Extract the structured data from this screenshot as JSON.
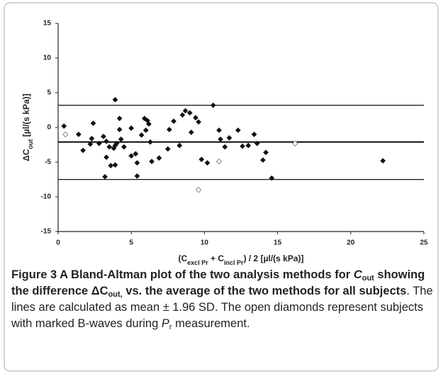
{
  "chart_data": {
    "type": "scatter",
    "y_label": [
      {
        "text": "ΔC"
      },
      {
        "text": "out",
        "sub": true
      },
      {
        "text": " [µl/(s kPa)]"
      }
    ],
    "x_label": [
      {
        "text": "(C"
      },
      {
        "text": "excl Pr",
        "sub": true
      },
      {
        "text": " + C"
      },
      {
        "text": "incl Pr",
        "sub": true
      },
      {
        "text": ") / 2 [µl/(s kPa)]"
      }
    ],
    "xlim": [
      0,
      25
    ],
    "xticks": [
      0,
      5,
      10,
      15,
      20,
      25
    ],
    "ylim": [
      -15,
      15
    ],
    "yticks": [
      15,
      10,
      5,
      0,
      -5,
      -10,
      -15
    ],
    "mean": -2.1,
    "limits": [
      3.2,
      -7.5
    ],
    "series": [
      {
        "marker": "filled",
        "color": "#111111",
        "x": [
          0.4,
          1.4,
          1.7,
          2.2,
          2.4,
          2.3,
          2.8,
          3.1,
          3.3,
          3.3,
          3.5,
          3.6,
          3.2,
          3.8,
          3.9,
          4.0,
          3.9,
          4.2,
          4.2,
          4.3,
          3.9,
          4.5,
          5.0,
          5.0,
          5.3,
          5.4,
          5.4,
          5.7,
          5.9,
          6.0,
          6.1,
          6.2,
          6.3,
          6.4,
          6.9,
          7.5,
          7.6,
          7.9,
          8.3,
          8.5,
          8.7,
          9.0,
          9.1,
          9.4,
          9.6,
          9.8,
          10.2,
          10.6,
          11.0,
          11.1,
          11.4,
          11.7,
          12.3,
          12.6,
          13.0,
          13.4,
          14.2,
          14.0,
          14.6,
          13.6,
          22.2
        ],
        "values": [
          0.2,
          -1.0,
          -3.3,
          -2.4,
          0.6,
          -1.6,
          -2.3,
          -1.3,
          -2.0,
          -4.3,
          -2.8,
          -5.5,
          -7.1,
          -3.0,
          -2.6,
          -2.3,
          -5.4,
          -0.3,
          1.3,
          -1.7,
          4.0,
          -2.8,
          -0.1,
          -4.1,
          -3.8,
          -5.1,
          -7.0,
          -1.1,
          1.3,
          -0.4,
          1.0,
          0.5,
          -2.1,
          -4.9,
          -4.4,
          -3.1,
          -0.3,
          0.9,
          -2.6,
          1.8,
          2.4,
          2.1,
          -0.7,
          1.4,
          0.8,
          -4.6,
          -5.1,
          3.2,
          -0.4,
          -1.7,
          -2.8,
          -1.5,
          -0.4,
          -2.7,
          -2.6,
          -1.0,
          -3.6,
          -4.7,
          -7.3,
          -2.3,
          -4.8
        ]
      },
      {
        "marker": "open",
        "color": "#888888",
        "x": [
          0.5,
          9.6,
          11.0,
          16.2
        ],
        "values": [
          -1.0,
          -9.0,
          -4.9,
          -2.3
        ]
      }
    ]
  },
  "caption": [
    {
      "text": "Figure 3 A Bland-Altman plot of the two analysis methods for ",
      "bold": true
    },
    {
      "text": "C",
      "bold": true,
      "italic": true
    },
    {
      "text": "out",
      "bold": true,
      "sub": true
    },
    {
      "text": " showing the difference ΔC",
      "bold": true
    },
    {
      "text": "out,",
      "bold": true,
      "sub": true
    },
    {
      "text": " vs. the average of the two methods for all subjects",
      "bold": true
    },
    {
      "text": ". The lines are calculated as mean ± 1.96 SD. The open diamonds represent subjects with marked B-waves during "
    },
    {
      "text": "P",
      "italic": true
    },
    {
      "text": "r",
      "sub": true
    },
    {
      "text": " measurement."
    }
  ]
}
